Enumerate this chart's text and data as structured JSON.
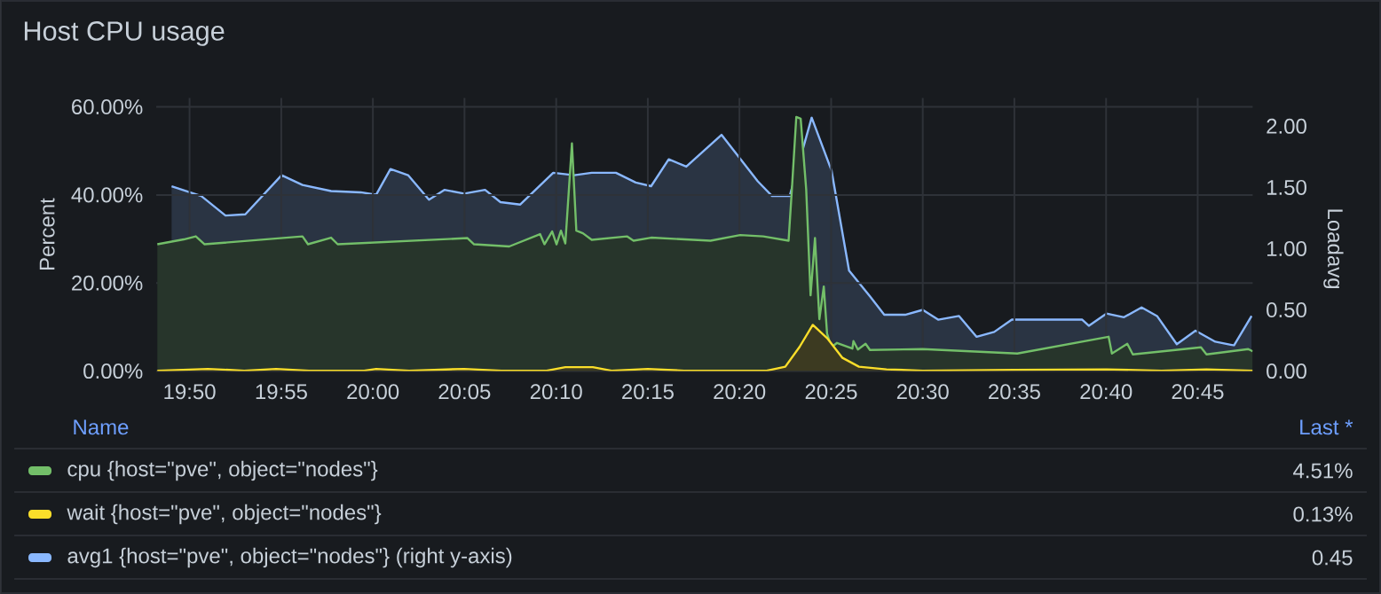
{
  "chart_data": {
    "type": "area",
    "title": "Host CPU usage",
    "ylabel": "Percent",
    "y2label": "Loadavg",
    "xlim": [
      19.803,
      20.8
    ],
    "xticks": [
      {
        "value": 19.8333,
        "label": "19:50"
      },
      {
        "value": 19.9167,
        "label": "19:55"
      },
      {
        "value": 20.0,
        "label": "20:00"
      },
      {
        "value": 20.0833,
        "label": "20:05"
      },
      {
        "value": 20.1667,
        "label": "20:10"
      },
      {
        "value": 20.25,
        "label": "20:15"
      },
      {
        "value": 20.3333,
        "label": "20:20"
      },
      {
        "value": 20.4167,
        "label": "20:25"
      },
      {
        "value": 20.5,
        "label": "20:30"
      },
      {
        "value": 20.5833,
        "label": "20:35"
      },
      {
        "value": 20.6667,
        "label": "20:40"
      },
      {
        "value": 20.75,
        "label": "20:45"
      }
    ],
    "ylim": [
      0,
      62
    ],
    "yticks": [
      {
        "value": 0,
        "label": "0.00%"
      },
      {
        "value": 20,
        "label": "20.00%"
      },
      {
        "value": 40,
        "label": "40.00%"
      },
      {
        "value": 60,
        "label": "60.00%"
      }
    ],
    "y2lim": [
      0,
      2.23
    ],
    "y2ticks": [
      {
        "value": 0,
        "label": "0.00"
      },
      {
        "value": 0.5,
        "label": "0.50"
      },
      {
        "value": 1.0,
        "label": "1.00"
      },
      {
        "value": 1.5,
        "label": "1.50"
      },
      {
        "value": 2.0,
        "label": "2.00"
      }
    ],
    "grid": true,
    "legend": "bottom",
    "annotations": [
      "Name",
      "Last *",
      "4.51%",
      "0.13%",
      "0.45"
    ],
    "series": [
      {
        "name": "cpu {host=\"pve\", object=\"nodes\"}",
        "color": "#73bf69",
        "x": [
          19.804,
          19.828,
          19.839,
          19.847,
          19.936,
          19.941,
          19.962,
          19.968,
          20.086,
          20.092,
          20.124,
          20.152,
          20.156,
          20.163,
          20.167,
          20.171,
          20.175,
          20.181,
          20.185,
          20.191,
          20.199,
          20.231,
          20.237,
          20.253,
          20.307,
          20.334,
          20.355,
          20.378,
          20.381,
          20.385,
          20.389,
          20.394,
          20.398,
          20.402,
          20.406,
          20.41,
          20.413,
          20.417,
          20.422,
          20.436,
          20.437,
          20.441,
          20.448,
          20.452,
          20.5,
          20.586,
          20.669,
          20.672,
          20.686,
          20.691,
          20.753,
          20.758,
          20.796,
          20.8
        ],
        "values": [
          28.8,
          29.9,
          30.6,
          28.8,
          30.6,
          28.8,
          30.3,
          28.8,
          30.2,
          28.8,
          28.3,
          31.1,
          28.8,
          31.7,
          28.8,
          31.9,
          29.0,
          51.7,
          31.9,
          31.3,
          29.8,
          30.6,
          29.6,
          30.3,
          29.6,
          30.9,
          30.6,
          29.6,
          41.3,
          57.7,
          57.3,
          41.3,
          17.2,
          30.2,
          11.8,
          19.2,
          8.5,
          5.4,
          6.4,
          5.1,
          6.8,
          4.9,
          6.2,
          4.8,
          5.0,
          4.0,
          7.8,
          4.0,
          6.2,
          3.8,
          5.4,
          3.8,
          5.0,
          4.5
        ]
      },
      {
        "name": "wait {host=\"pve\", object=\"nodes\"}",
        "color": "#fade2a",
        "x": [
          19.804,
          19.85,
          19.883,
          19.912,
          19.942,
          19.992,
          20.003,
          20.033,
          20.083,
          20.117,
          20.158,
          20.175,
          20.2,
          20.217,
          20.25,
          20.283,
          20.358,
          20.375,
          20.388,
          20.4,
          20.413,
          20.427,
          20.442,
          20.467,
          20.5,
          20.583,
          20.667,
          20.717,
          20.758,
          20.8
        ],
        "values": [
          0.1,
          0.5,
          0.1,
          0.5,
          0.1,
          0.1,
          0.5,
          0.1,
          0.5,
          0.1,
          0.1,
          0.9,
          0.9,
          0.1,
          0.5,
          0.1,
          0.1,
          1.0,
          5.5,
          10.5,
          7.5,
          3.0,
          1.0,
          0.4,
          0.1,
          0.3,
          0.4,
          0.1,
          0.4,
          0.1
        ]
      },
      {
        "name": "avg1 {host=\"pve\", object=\"nodes\"} (right y-axis)",
        "color": "#8ab8ff",
        "axis": "y2",
        "x": [
          19.817,
          19.844,
          19.866,
          19.884,
          19.917,
          19.936,
          19.962,
          19.989,
          20.003,
          20.016,
          20.032,
          20.051,
          20.065,
          20.083,
          20.102,
          20.116,
          20.134,
          20.164,
          20.183,
          20.199,
          20.221,
          20.239,
          20.253,
          20.269,
          20.285,
          20.317,
          20.35,
          20.363,
          20.379,
          20.399,
          20.417,
          20.433,
          20.452,
          20.465,
          20.484,
          20.5,
          20.514,
          20.533,
          20.549,
          20.565,
          20.581,
          20.645,
          20.651,
          20.667,
          20.683,
          20.699,
          20.713,
          20.731,
          20.748,
          20.766,
          20.783,
          20.799
        ],
        "values": [
          1.51,
          1.43,
          1.27,
          1.28,
          1.6,
          1.52,
          1.47,
          1.46,
          1.44,
          1.65,
          1.6,
          1.4,
          1.48,
          1.45,
          1.48,
          1.38,
          1.36,
          1.62,
          1.6,
          1.62,
          1.62,
          1.54,
          1.51,
          1.73,
          1.67,
          1.93,
          1.55,
          1.43,
          1.43,
          2.07,
          1.64,
          0.82,
          0.61,
          0.46,
          0.46,
          0.5,
          0.42,
          0.45,
          0.28,
          0.32,
          0.42,
          0.42,
          0.37,
          0.47,
          0.44,
          0.52,
          0.45,
          0.22,
          0.33,
          0.24,
          0.21,
          0.45
        ]
      }
    ]
  }
}
